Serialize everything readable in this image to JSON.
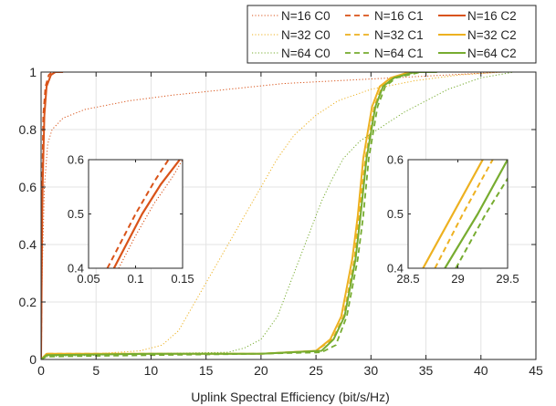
{
  "chart_data": {
    "type": "line",
    "title": "",
    "xlabel": "Uplink Spectral Efficiency (bit/s/Hz)",
    "ylabel": "",
    "xlim": [
      0,
      45
    ],
    "ylim": [
      0,
      1
    ],
    "xticks": [
      "0",
      "5",
      "10",
      "15",
      "20",
      "25",
      "30",
      "35",
      "40",
      "45"
    ],
    "yticks": [
      "0",
      "0.2",
      "0.4",
      "0.6",
      "0.8",
      "1"
    ],
    "grid": true,
    "legend_position": "top-right (above plot, 3x3)",
    "colors": {
      "N16": "#d95319",
      "N32": "#edb120",
      "N64": "#77ac30"
    },
    "series": [
      {
        "name": "N=16 C0",
        "color": "#d95319",
        "style": "dotted",
        "points": [
          [
            0,
            0
          ],
          [
            0.1,
            0.3
          ],
          [
            0.3,
            0.6
          ],
          [
            0.6,
            0.75
          ],
          [
            1,
            0.8
          ],
          [
            2,
            0.84
          ],
          [
            4,
            0.87
          ],
          [
            8,
            0.9
          ],
          [
            12,
            0.92
          ],
          [
            17,
            0.94
          ],
          [
            22,
            0.96
          ],
          [
            27,
            0.97
          ],
          [
            32,
            0.98
          ],
          [
            37,
            0.99
          ],
          [
            42,
            1.0
          ],
          [
            43,
            1.0
          ]
        ]
      },
      {
        "name": "N=16 C1",
        "color": "#d95319",
        "style": "dashed",
        "points": [
          [
            0,
            0
          ],
          [
            0.05,
            0.3
          ],
          [
            0.1,
            0.6
          ],
          [
            0.2,
            0.85
          ],
          [
            0.4,
            0.95
          ],
          [
            0.7,
            0.99
          ],
          [
            1,
            1.0
          ],
          [
            2,
            1.0
          ]
        ]
      },
      {
        "name": "N=16 C2",
        "color": "#d95319",
        "style": "solid",
        "points": [
          [
            0,
            0
          ],
          [
            0.05,
            0.25
          ],
          [
            0.1,
            0.5
          ],
          [
            0.15,
            0.62
          ],
          [
            0.3,
            0.85
          ],
          [
            0.5,
            0.95
          ],
          [
            0.9,
            0.99
          ],
          [
            1.3,
            1.0
          ],
          [
            2,
            1.0
          ]
        ]
      },
      {
        "name": "N=32 C0",
        "color": "#edb120",
        "style": "dotted",
        "points": [
          [
            0,
            0
          ],
          [
            0.5,
            0.01
          ],
          [
            5,
            0.02
          ],
          [
            9,
            0.03
          ],
          [
            11,
            0.05
          ],
          [
            12.5,
            0.1
          ],
          [
            14,
            0.2
          ],
          [
            15.5,
            0.3
          ],
          [
            17,
            0.4
          ],
          [
            18.5,
            0.5
          ],
          [
            20,
            0.6
          ],
          [
            21.5,
            0.7
          ],
          [
            23,
            0.78
          ],
          [
            25,
            0.85
          ],
          [
            27,
            0.9
          ],
          [
            30,
            0.94
          ],
          [
            34,
            0.97
          ],
          [
            38,
            0.99
          ],
          [
            42,
            1.0
          ],
          [
            43,
            1.0
          ]
        ]
      },
      {
        "name": "N=32 C1",
        "color": "#edb120",
        "style": "dashed",
        "points": [
          [
            0,
            0
          ],
          [
            0.5,
            0.02
          ],
          [
            10,
            0.02
          ],
          [
            20,
            0.02
          ],
          [
            25,
            0.03
          ],
          [
            26.5,
            0.07
          ],
          [
            27.5,
            0.15
          ],
          [
            28.5,
            0.35
          ],
          [
            28.9,
            0.5
          ],
          [
            29.5,
            0.7
          ],
          [
            30.3,
            0.88
          ],
          [
            31,
            0.95
          ],
          [
            32,
            0.98
          ],
          [
            34,
            1.0
          ],
          [
            36,
            1.0
          ]
        ]
      },
      {
        "name": "N=32 C2",
        "color": "#edb120",
        "style": "solid",
        "points": [
          [
            0,
            0
          ],
          [
            0.5,
            0.02
          ],
          [
            10,
            0.02
          ],
          [
            20,
            0.02
          ],
          [
            25,
            0.03
          ],
          [
            26.3,
            0.07
          ],
          [
            27.3,
            0.15
          ],
          [
            28.3,
            0.35
          ],
          [
            28.8,
            0.5
          ],
          [
            29.3,
            0.7
          ],
          [
            30.1,
            0.88
          ],
          [
            30.8,
            0.95
          ],
          [
            31.8,
            0.98
          ],
          [
            33.5,
            1.0
          ],
          [
            36,
            1.0
          ]
        ]
      },
      {
        "name": "N=64 C0",
        "color": "#77ac30",
        "style": "dotted",
        "points": [
          [
            0,
            0
          ],
          [
            0.5,
            0.01
          ],
          [
            10,
            0.02
          ],
          [
            17,
            0.025
          ],
          [
            18.5,
            0.04
          ],
          [
            20,
            0.07
          ],
          [
            21.5,
            0.15
          ],
          [
            22.5,
            0.25
          ],
          [
            23.5,
            0.35
          ],
          [
            24.5,
            0.45
          ],
          [
            25.5,
            0.55
          ],
          [
            26.5,
            0.63
          ],
          [
            27.5,
            0.7
          ],
          [
            29,
            0.76
          ],
          [
            31,
            0.81
          ],
          [
            33,
            0.86
          ],
          [
            35,
            0.9
          ],
          [
            37,
            0.94
          ],
          [
            40,
            0.98
          ],
          [
            43,
            1.0
          ]
        ]
      },
      {
        "name": "N=64 C1",
        "color": "#77ac30",
        "style": "dashed",
        "points": [
          [
            0,
            0
          ],
          [
            0.5,
            0.01
          ],
          [
            10,
            0.015
          ],
          [
            20,
            0.02
          ],
          [
            25.5,
            0.025
          ],
          [
            26.8,
            0.05
          ],
          [
            27.8,
            0.15
          ],
          [
            28.8,
            0.35
          ],
          [
            29.3,
            0.5
          ],
          [
            29.8,
            0.7
          ],
          [
            30.6,
            0.88
          ],
          [
            31.3,
            0.95
          ],
          [
            32.3,
            0.98
          ],
          [
            34.5,
            1.0
          ],
          [
            36,
            1.0
          ]
        ]
      },
      {
        "name": "N=64 C2",
        "color": "#77ac30",
        "style": "solid",
        "points": [
          [
            0,
            0
          ],
          [
            0.5,
            0.015
          ],
          [
            10,
            0.02
          ],
          [
            20,
            0.02
          ],
          [
            25.5,
            0.03
          ],
          [
            26.6,
            0.07
          ],
          [
            27.6,
            0.15
          ],
          [
            28.6,
            0.35
          ],
          [
            29.05,
            0.5
          ],
          [
            29.6,
            0.7
          ],
          [
            30.4,
            0.88
          ],
          [
            31.1,
            0.95
          ],
          [
            32.1,
            0.98
          ],
          [
            34,
            1.0
          ],
          [
            36,
            1.0
          ]
        ]
      }
    ],
    "insets": [
      {
        "name": "inset-left",
        "xlim": [
          0.05,
          0.15
        ],
        "ylim": [
          0.4,
          0.6
        ],
        "xticks": [
          "0.05",
          "0.1",
          "0.15"
        ],
        "yticks": [
          "0.4",
          "0.5",
          "0.6"
        ],
        "series": [
          {
            "ref": "N=16 C0",
            "color": "#d95319",
            "style": "dotted",
            "points": [
              [
                0.082,
                0.4
              ],
              [
                0.1,
                0.46
              ],
              [
                0.12,
                0.52
              ],
              [
                0.14,
                0.57
              ],
              [
                0.15,
                0.6
              ]
            ]
          },
          {
            "ref": "N=16 C1",
            "color": "#d95319",
            "style": "dashed",
            "points": [
              [
                0.07,
                0.4
              ],
              [
                0.085,
                0.45
              ],
              [
                0.1,
                0.5
              ],
              [
                0.12,
                0.56
              ],
              [
                0.135,
                0.6
              ]
            ]
          },
          {
            "ref": "N=16 C2",
            "color": "#d95319",
            "style": "solid",
            "points": [
              [
                0.077,
                0.4
              ],
              [
                0.092,
                0.45
              ],
              [
                0.107,
                0.5
              ],
              [
                0.127,
                0.555
              ],
              [
                0.147,
                0.6
              ]
            ]
          }
        ]
      },
      {
        "name": "inset-right",
        "xlim": [
          28.5,
          29.5
        ],
        "ylim": [
          0.4,
          0.6
        ],
        "xticks": [
          "28.5",
          "29",
          "29.5"
        ],
        "yticks": [
          "0.4",
          "0.5",
          "0.6"
        ],
        "series": [
          {
            "ref": "N=32 C1",
            "color": "#edb120",
            "style": "dashed",
            "points": [
              [
                28.77,
                0.4
              ],
              [
                29.05,
                0.5
              ],
              [
                29.35,
                0.6
              ]
            ]
          },
          {
            "ref": "N=32 C2",
            "color": "#edb120",
            "style": "solid",
            "points": [
              [
                28.65,
                0.4
              ],
              [
                28.95,
                0.5
              ],
              [
                29.25,
                0.6
              ]
            ]
          },
          {
            "ref": "N=64 C1",
            "color": "#77ac30",
            "style": "dashed",
            "points": [
              [
                28.98,
                0.4
              ],
              [
                29.28,
                0.5
              ],
              [
                29.55,
                0.58
              ]
            ]
          },
          {
            "ref": "N=64 C2",
            "color": "#77ac30",
            "style": "solid",
            "points": [
              [
                28.87,
                0.4
              ],
              [
                29.2,
                0.5
              ],
              [
                29.5,
                0.6
              ]
            ]
          }
        ]
      }
    ]
  }
}
